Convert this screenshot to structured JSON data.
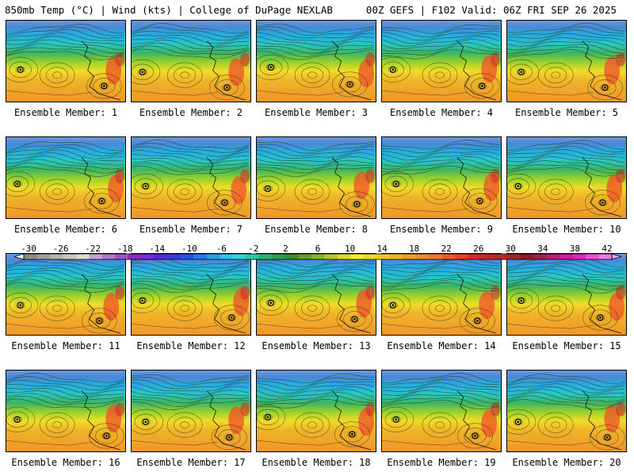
{
  "header": {
    "title_left": "850mb Temp (°C) | Wind (kts) | College of DuPage NEXLAB",
    "title_right": "00Z GEFS | F102 Valid: 06Z FRI SEP 26 2025"
  },
  "colorbar": {
    "tick_labels": [
      "-30",
      "-26",
      "-22",
      "-18",
      "-14",
      "-10",
      "-6",
      "-2",
      "2",
      "6",
      "10",
      "14",
      "18",
      "22",
      "26",
      "30",
      "34",
      "38",
      "42"
    ],
    "colors": [
      "#8c8c8c",
      "#a0a0a0",
      "#b4b4b4",
      "#c8c8c8",
      "#dcdcdc",
      "#c8a0dc",
      "#b478c8",
      "#a050c8",
      "#8c28c8",
      "#7828dc",
      "#5a28dc",
      "#3c3cdc",
      "#2850f0",
      "#2878f0",
      "#28a0f0",
      "#28c8f0",
      "#28dcdc",
      "#28c8a0",
      "#28b478",
      "#28a050",
      "#3c8c28",
      "#64a028",
      "#8cb428",
      "#b4c828",
      "#dcdc28",
      "#f0f028",
      "#f0dc28",
      "#f0c828",
      "#f0b428",
      "#f0a028",
      "#f08c28",
      "#f07828",
      "#f05a28",
      "#f03c28",
      "#dc2828",
      "#c82828",
      "#b42828",
      "#a02828",
      "#8c1e1e",
      "#a01e50",
      "#b41e78",
      "#c81ea0",
      "#dc28c8",
      "#f050dc",
      "#f078e6"
    ]
  },
  "members": [
    {
      "label": "Ensemble Member: 1"
    },
    {
      "label": "Ensemble Member: 2"
    },
    {
      "label": "Ensemble Member: 3"
    },
    {
      "label": "Ensemble Member: 4"
    },
    {
      "label": "Ensemble Member: 5"
    },
    {
      "label": "Ensemble Member: 6"
    },
    {
      "label": "Ensemble Member: 7"
    },
    {
      "label": "Ensemble Member: 8"
    },
    {
      "label": "Ensemble Member: 9"
    },
    {
      "label": "Ensemble Member: 10"
    },
    {
      "label": "Ensemble Member: 11"
    },
    {
      "label": "Ensemble Member: 12"
    },
    {
      "label": "Ensemble Member: 13"
    },
    {
      "label": "Ensemble Member: 14"
    },
    {
      "label": "Ensemble Member: 15"
    },
    {
      "label": "Ensemble Member: 16"
    },
    {
      "label": "Ensemble Member: 17"
    },
    {
      "label": "Ensemble Member: 18"
    },
    {
      "label": "Ensemble Member: 19"
    },
    {
      "label": "Ensemble Member: 20"
    }
  ]
}
